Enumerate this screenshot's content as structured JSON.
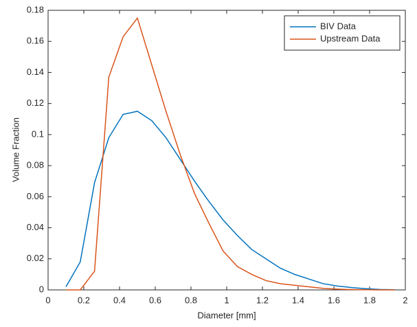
{
  "chart_data": {
    "type": "line",
    "x_label": "Diameter [mm]",
    "y_label": "Volume Fraction",
    "x": [
      0.1,
      0.18,
      0.26,
      0.34,
      0.42,
      0.5,
      0.58,
      0.66,
      0.74,
      0.82,
      0.9,
      0.98,
      1.06,
      1.14,
      1.22,
      1.3,
      1.38,
      1.46,
      1.54,
      1.62,
      1.7,
      1.78,
      1.86,
      1.94
    ],
    "series": [
      {
        "name": "BIV Data",
        "color": "#0072bd",
        "values": [
          0.002,
          0.018,
          0.069,
          0.098,
          0.113,
          0.115,
          0.109,
          0.098,
          0.084,
          0.07,
          0.057,
          0.045,
          0.035,
          0.026,
          0.02,
          0.014,
          0.01,
          0.007,
          0.004,
          0.0025,
          0.0015,
          0.0008,
          0.0003,
          0.0001
        ]
      },
      {
        "name": "Upstream Data",
        "color": "#d95319",
        "values": [
          0,
          0,
          0.012,
          0.137,
          0.163,
          0.175,
          0.145,
          0.115,
          0.087,
          0.062,
          0.043,
          0.025,
          0.015,
          0.01,
          0.006,
          0.004,
          0.003,
          0.002,
          0.001,
          0.0005,
          0.0002,
          0.0001,
          0,
          0
        ]
      }
    ],
    "xlim": [
      0,
      2
    ],
    "xticks": [
      0,
      0.2,
      0.4,
      0.6,
      0.8,
      1,
      1.2,
      1.4,
      1.6,
      1.8,
      2
    ],
    "ylim": [
      0,
      0.18
    ],
    "yticks": [
      0,
      0.02,
      0.04,
      0.06,
      0.08,
      0.1,
      0.12,
      0.14,
      0.16,
      0.18
    ],
    "legend": "top-right"
  }
}
